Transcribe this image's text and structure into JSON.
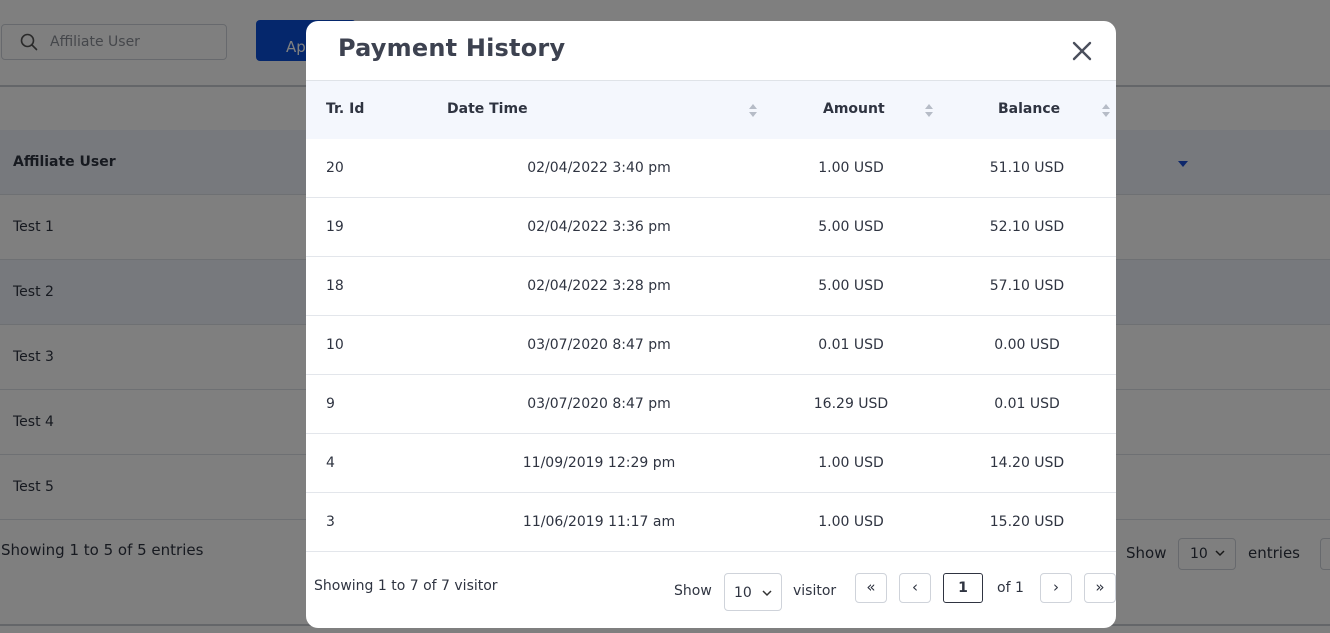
{
  "background": {
    "search": {
      "placeholder": "Affiliate User",
      "value": ""
    },
    "apply_button_label": "Ap",
    "table": {
      "header": "Affiliate User",
      "rows": [
        "Test 1",
        "Test 2",
        "Test 3",
        "Test 4",
        "Test 5"
      ]
    },
    "footer": {
      "info": "Showing 1 to 5 of 5 entries",
      "show_label": "Show",
      "page_size": "10",
      "entries_label": "entries"
    }
  },
  "modal": {
    "title": "Payment History",
    "columns": {
      "id": "Tr. Id",
      "date": "Date Time",
      "amount": "Amount",
      "balance": "Balance"
    },
    "rows": [
      {
        "id": "20",
        "date": "02/04/2022 3:40 pm",
        "amount": "1.00 USD",
        "balance": "51.10 USD"
      },
      {
        "id": "19",
        "date": "02/04/2022 3:36 pm",
        "amount": "5.00 USD",
        "balance": "52.10 USD"
      },
      {
        "id": "18",
        "date": "02/04/2022 3:28 pm",
        "amount": "5.00 USD",
        "balance": "57.10 USD"
      },
      {
        "id": "10",
        "date": "03/07/2020 8:47 pm",
        "amount": "0.01 USD",
        "balance": "0.00 USD"
      },
      {
        "id": "9",
        "date": "03/07/2020 8:47 pm",
        "amount": "16.29 USD",
        "balance": "0.01 USD"
      },
      {
        "id": "4",
        "date": "11/09/2019 12:29 pm",
        "amount": "1.00 USD",
        "balance": "14.20 USD"
      },
      {
        "id": "3",
        "date": "11/06/2019 11:17 am",
        "amount": "1.00 USD",
        "balance": "15.20 USD"
      }
    ],
    "footer": {
      "info": "Showing 1 to 7 of 7 visitor",
      "show_label": "Show",
      "page_size": "10",
      "visitor_label": "visitor",
      "first": "«",
      "prev": "‹",
      "current_page": "1",
      "of_label": "of 1",
      "next": "›",
      "last": "»"
    }
  },
  "colors": {
    "primary": "#0b4fd8",
    "header_bg": "#f4f7fd",
    "overlay": "rgba(0,0,0,0.5)"
  }
}
